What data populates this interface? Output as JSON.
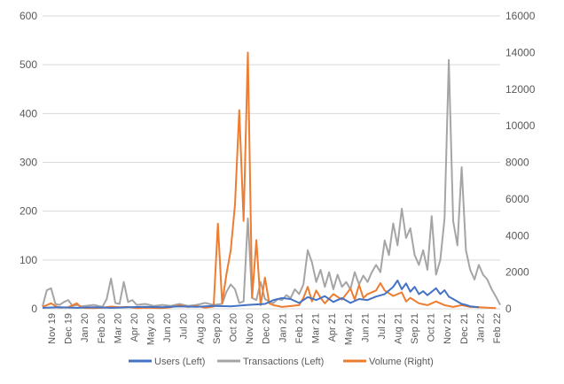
{
  "chart_data": {
    "type": "line",
    "title": "",
    "x_ticks": [
      "Nov 19",
      "Dec 19",
      "Jan 20",
      "Feb 20",
      "Mar 20",
      "Apr 20",
      "May 20",
      "Jun 20",
      "Jul 20",
      "Aug 20",
      "Sep 20",
      "Oct 20",
      "Nov 20",
      "Dec 20",
      "Jan 21",
      "Feb 21",
      "Mar 21",
      "Apr 21",
      "May 21",
      "Jun 21",
      "Jul 21",
      "Aug 21",
      "Sep 21",
      "Oct 21",
      "Nov 21",
      "Dec 21",
      "Jan 22",
      "Feb 22"
    ],
    "y_left": {
      "min": 0,
      "max": 600,
      "ticks": [
        "0",
        "100",
        "200",
        "300",
        "400",
        "500",
        "600"
      ]
    },
    "y_right": {
      "min": 0,
      "max": 16000,
      "ticks": [
        "0",
        "2000",
        "4000",
        "6000",
        "8000",
        "10000",
        "12000",
        "14000",
        "16000"
      ]
    },
    "grid": true,
    "legend_position": "bottom",
    "series": [
      {
        "name": "Users (Left)",
        "axis": "left",
        "color": "#4472c4",
        "points": [
          [
            0,
            2
          ],
          [
            2,
            3
          ],
          [
            4,
            2
          ],
          [
            6,
            3
          ],
          [
            8,
            2
          ],
          [
            10,
            3
          ],
          [
            12,
            4
          ],
          [
            14,
            3
          ],
          [
            16,
            5
          ],
          [
            18,
            4
          ],
          [
            20,
            6
          ],
          [
            22,
            5
          ],
          [
            24,
            8
          ],
          [
            26,
            10
          ],
          [
            27,
            18
          ],
          [
            28,
            22
          ],
          [
            29,
            20
          ],
          [
            30,
            12
          ],
          [
            31,
            24
          ],
          [
            32,
            18
          ],
          [
            33,
            26
          ],
          [
            34,
            14
          ],
          [
            35,
            22
          ],
          [
            36,
            12
          ],
          [
            37,
            20
          ],
          [
            38,
            18
          ],
          [
            39,
            25
          ],
          [
            40,
            30
          ],
          [
            41,
            45
          ],
          [
            41.5,
            58
          ],
          [
            42,
            40
          ],
          [
            42.5,
            52
          ],
          [
            43,
            35
          ],
          [
            43.5,
            45
          ],
          [
            44,
            30
          ],
          [
            44.5,
            36
          ],
          [
            45,
            28
          ],
          [
            46,
            42
          ],
          [
            46.5,
            30
          ],
          [
            47,
            38
          ],
          [
            47.5,
            25
          ],
          [
            48,
            20
          ],
          [
            48.5,
            15
          ],
          [
            49,
            10
          ],
          [
            49.5,
            8
          ],
          [
            50,
            5
          ],
          [
            50.5,
            4
          ],
          [
            51,
            3
          ]
        ]
      },
      {
        "name": "Transactions (Left)",
        "axis": "left",
        "color": "#a5a5a5",
        "points": [
          [
            0,
            5
          ],
          [
            0.5,
            38
          ],
          [
            1,
            42
          ],
          [
            1.5,
            10
          ],
          [
            2,
            8
          ],
          [
            2.5,
            14
          ],
          [
            3,
            18
          ],
          [
            3.5,
            6
          ],
          [
            4,
            8
          ],
          [
            4.5,
            5
          ],
          [
            5,
            6
          ],
          [
            6,
            8
          ],
          [
            7,
            4
          ],
          [
            7.5,
            20
          ],
          [
            8,
            62
          ],
          [
            8.5,
            12
          ],
          [
            9,
            10
          ],
          [
            9.5,
            55
          ],
          [
            10,
            14
          ],
          [
            10.5,
            18
          ],
          [
            11,
            8
          ],
          [
            12,
            10
          ],
          [
            13,
            6
          ],
          [
            14,
            8
          ],
          [
            15,
            6
          ],
          [
            16,
            10
          ],
          [
            17,
            6
          ],
          [
            18,
            8
          ],
          [
            19,
            12
          ],
          [
            20,
            8
          ],
          [
            21,
            10
          ],
          [
            21.5,
            35
          ],
          [
            22,
            50
          ],
          [
            22.5,
            40
          ],
          [
            23,
            12
          ],
          [
            23.5,
            15
          ],
          [
            24,
            185
          ],
          [
            24.5,
            22
          ],
          [
            25,
            18
          ],
          [
            25.5,
            55
          ],
          [
            26,
            20
          ],
          [
            26.5,
            15
          ],
          [
            27,
            12
          ],
          [
            27.5,
            20
          ],
          [
            28,
            18
          ],
          [
            28.5,
            28
          ],
          [
            29,
            22
          ],
          [
            29.5,
            40
          ],
          [
            30,
            30
          ],
          [
            30.5,
            50
          ],
          [
            31,
            120
          ],
          [
            31.5,
            95
          ],
          [
            32,
            55
          ],
          [
            32.5,
            80
          ],
          [
            33,
            45
          ],
          [
            33.5,
            75
          ],
          [
            34,
            40
          ],
          [
            34.5,
            70
          ],
          [
            35,
            45
          ],
          [
            35.5,
            55
          ],
          [
            36,
            40
          ],
          [
            36.5,
            75
          ],
          [
            37,
            50
          ],
          [
            37.5,
            68
          ],
          [
            38,
            55
          ],
          [
            38.5,
            75
          ],
          [
            39,
            90
          ],
          [
            39.5,
            75
          ],
          [
            40,
            140
          ],
          [
            40.5,
            110
          ],
          [
            41,
            175
          ],
          [
            41.5,
            130
          ],
          [
            42,
            205
          ],
          [
            42.5,
            145
          ],
          [
            43,
            165
          ],
          [
            43.5,
            110
          ],
          [
            44,
            90
          ],
          [
            44.5,
            120
          ],
          [
            45,
            80
          ],
          [
            45.5,
            190
          ],
          [
            46,
            70
          ],
          [
            46.5,
            100
          ],
          [
            47,
            185
          ],
          [
            47.5,
            510
          ],
          [
            48,
            180
          ],
          [
            48.5,
            130
          ],
          [
            49,
            290
          ],
          [
            49.5,
            120
          ],
          [
            50,
            80
          ],
          [
            50.5,
            60
          ],
          [
            51,
            90
          ],
          [
            51.5,
            70
          ],
          [
            52,
            60
          ],
          [
            52.5,
            40
          ],
          [
            53,
            25
          ],
          [
            53.5,
            8
          ]
        ]
      },
      {
        "name": "Volume (Right)",
        "axis": "right",
        "color": "#ed7d31",
        "points": [
          [
            0,
            100
          ],
          [
            1,
            300
          ],
          [
            1.5,
            150
          ],
          [
            2,
            60
          ],
          [
            3,
            80
          ],
          [
            4,
            300
          ],
          [
            4.5,
            80
          ],
          [
            5,
            50
          ],
          [
            6,
            40
          ],
          [
            7,
            60
          ],
          [
            8,
            120
          ],
          [
            9,
            80
          ],
          [
            10,
            100
          ],
          [
            11,
            40
          ],
          [
            12,
            60
          ],
          [
            13,
            50
          ],
          [
            14,
            40
          ],
          [
            15,
            80
          ],
          [
            16,
            200
          ],
          [
            17,
            100
          ],
          [
            18,
            160
          ],
          [
            19,
            60
          ],
          [
            20,
            120
          ],
          [
            20.5,
            4650
          ],
          [
            21,
            300
          ],
          [
            21.5,
            1900
          ],
          [
            22,
            3200
          ],
          [
            22.5,
            5700
          ],
          [
            23,
            10850
          ],
          [
            23.5,
            4800
          ],
          [
            24,
            14000
          ],
          [
            24.5,
            600
          ],
          [
            25,
            3750
          ],
          [
            25.5,
            200
          ],
          [
            26,
            1700
          ],
          [
            26.5,
            300
          ],
          [
            27,
            200
          ],
          [
            28,
            100
          ],
          [
            29,
            150
          ],
          [
            30,
            200
          ],
          [
            30.5,
            600
          ],
          [
            31,
            1200
          ],
          [
            31.5,
            400
          ],
          [
            32,
            1000
          ],
          [
            32.5,
            600
          ],
          [
            33,
            300
          ],
          [
            34,
            800
          ],
          [
            35,
            500
          ],
          [
            36,
            1100
          ],
          [
            36.5,
            500
          ],
          [
            37,
            1300
          ],
          [
            37.5,
            600
          ],
          [
            38,
            800
          ],
          [
            39,
            1000
          ],
          [
            39.5,
            1400
          ],
          [
            40,
            1000
          ],
          [
            41,
            700
          ],
          [
            42,
            900
          ],
          [
            42.5,
            400
          ],
          [
            43,
            600
          ],
          [
            44,
            300
          ],
          [
            45,
            200
          ],
          [
            46,
            400
          ],
          [
            47,
            200
          ],
          [
            48,
            100
          ],
          [
            49,
            200
          ],
          [
            50,
            100
          ],
          [
            51,
            80
          ],
          [
            52,
            60
          ],
          [
            53,
            40
          ]
        ]
      }
    ],
    "x_index_max": 53.5
  },
  "legend": {
    "items": [
      {
        "label": "Users (Left)",
        "color": "#4472c4"
      },
      {
        "label": "Transactions (Left)",
        "color": "#a5a5a5"
      },
      {
        "label": "Volume (Right)",
        "color": "#ed7d31"
      }
    ]
  }
}
